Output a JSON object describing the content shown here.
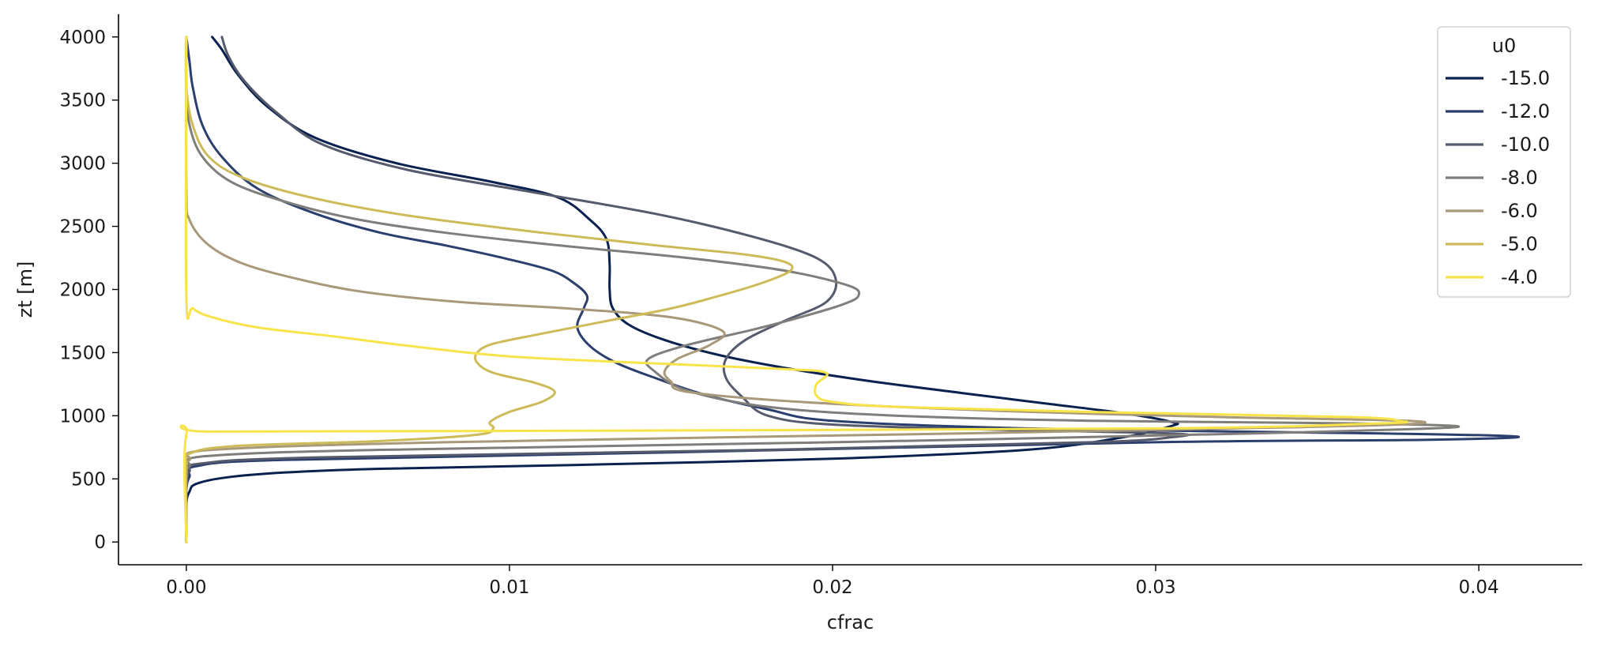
{
  "chart_data": {
    "type": "line",
    "xlabel": "cfrac",
    "ylabel": "zt [m]",
    "xlim": [
      -0.0021,
      0.0432
    ],
    "ylim": [
      -180,
      4180
    ],
    "x_ticks": [
      {
        "value": 0.0,
        "label": "0.00"
      },
      {
        "value": 0.01,
        "label": "0.01"
      },
      {
        "value": 0.02,
        "label": "0.02"
      },
      {
        "value": 0.03,
        "label": "0.03"
      },
      {
        "value": 0.04,
        "label": "0.04"
      }
    ],
    "y_ticks": [
      {
        "value": 0,
        "label": "0"
      },
      {
        "value": 500,
        "label": "500"
      },
      {
        "value": 1000,
        "label": "1000"
      },
      {
        "value": 1500,
        "label": "1500"
      },
      {
        "value": 2000,
        "label": "2000"
      },
      {
        "value": 2500,
        "label": "2500"
      },
      {
        "value": 3000,
        "label": "3000"
      },
      {
        "value": 3500,
        "label": "3500"
      },
      {
        "value": 4000,
        "label": "4000"
      }
    ],
    "grid": false,
    "legend": {
      "title": "u0",
      "placement": "top-right"
    },
    "series": [
      {
        "name": "-15.0",
        "color": "#0a2150",
        "points": [
          [
            0,
            0
          ],
          [
            0,
            300
          ],
          [
            0.0001,
            400
          ],
          [
            0.0003,
            460
          ],
          [
            0.0012,
            510
          ],
          [
            0.003,
            550
          ],
          [
            0.006,
            580
          ],
          [
            0.012,
            610
          ],
          [
            0.02,
            660
          ],
          [
            0.026,
            730
          ],
          [
            0.029,
            830
          ],
          [
            0.0305,
            920
          ],
          [
            0.0305,
            950
          ],
          [
            0.029,
            1020
          ],
          [
            0.0265,
            1100
          ],
          [
            0.024,
            1180
          ],
          [
            0.021,
            1280
          ],
          [
            0.0185,
            1380
          ],
          [
            0.0165,
            1480
          ],
          [
            0.0148,
            1600
          ],
          [
            0.0137,
            1720
          ],
          [
            0.0132,
            1850
          ],
          [
            0.0131,
            2000
          ],
          [
            0.0131,
            2200
          ],
          [
            0.013,
            2400
          ],
          [
            0.0125,
            2550
          ],
          [
            0.0115,
            2730
          ],
          [
            0.0095,
            2850
          ],
          [
            0.0065,
            3000
          ],
          [
            0.004,
            3200
          ],
          [
            0.0025,
            3450
          ],
          [
            0.0016,
            3700
          ],
          [
            0.0011,
            3900
          ],
          [
            0.0008,
            4000
          ]
        ]
      },
      {
        "name": "-12.0",
        "color": "#2b3f6e",
        "points": [
          [
            0,
            0
          ],
          [
            0,
            400
          ],
          [
            0.0001,
            520
          ],
          [
            0.0003,
            600
          ],
          [
            0.003,
            650
          ],
          [
            0.015,
            710
          ],
          [
            0.03,
            790
          ],
          [
            0.0385,
            810
          ],
          [
            0.0412,
            835
          ],
          [
            0.037,
            860
          ],
          [
            0.026,
            900
          ],
          [
            0.02,
            960
          ],
          [
            0.018,
            1050
          ],
          [
            0.016,
            1170
          ],
          [
            0.0145,
            1300
          ],
          [
            0.0133,
            1420
          ],
          [
            0.0125,
            1550
          ],
          [
            0.0121,
            1700
          ],
          [
            0.0123,
            1850
          ],
          [
            0.0124,
            1950
          ],
          [
            0.012,
            2050
          ],
          [
            0.0113,
            2150
          ],
          [
            0.0098,
            2250
          ],
          [
            0.008,
            2350
          ],
          [
            0.006,
            2450
          ],
          [
            0.004,
            2600
          ],
          [
            0.0022,
            2800
          ],
          [
            0.0011,
            3050
          ],
          [
            0.0005,
            3300
          ],
          [
            0.0002,
            3600
          ],
          [
            0.0001,
            3800
          ],
          [
            0,
            4000
          ]
        ]
      },
      {
        "name": "-10.0",
        "color": "#555a6c",
        "points": [
          [
            0,
            0
          ],
          [
            0,
            450
          ],
          [
            0.0001,
            560
          ],
          [
            0.0004,
            620
          ],
          [
            0.004,
            670
          ],
          [
            0.018,
            730
          ],
          [
            0.028,
            790
          ],
          [
            0.0305,
            830
          ],
          [
            0.0305,
            860
          ],
          [
            0.025,
            890
          ],
          [
            0.02,
            930
          ],
          [
            0.018,
            1000
          ],
          [
            0.0172,
            1150
          ],
          [
            0.0167,
            1300
          ],
          [
            0.0167,
            1450
          ],
          [
            0.0173,
            1600
          ],
          [
            0.0185,
            1750
          ],
          [
            0.0198,
            1900
          ],
          [
            0.0201,
            2080
          ],
          [
            0.0195,
            2250
          ],
          [
            0.0175,
            2420
          ],
          [
            0.0145,
            2600
          ],
          [
            0.0105,
            2780
          ],
          [
            0.0068,
            2950
          ],
          [
            0.0042,
            3150
          ],
          [
            0.0028,
            3400
          ],
          [
            0.0018,
            3650
          ],
          [
            0.0013,
            3850
          ],
          [
            0.0011,
            4000
          ]
        ]
      },
      {
        "name": "-8.0",
        "color": "#7f7e7a",
        "points": [
          [
            0,
            0
          ],
          [
            0,
            500
          ],
          [
            0.0001,
            600
          ],
          [
            0.0006,
            680
          ],
          [
            0.006,
            730
          ],
          [
            0.02,
            790
          ],
          [
            0.033,
            860
          ],
          [
            0.0393,
            910
          ],
          [
            0.036,
            940
          ],
          [
            0.028,
            960
          ],
          [
            0.022,
            1000
          ],
          [
            0.018,
            1070
          ],
          [
            0.0155,
            1200
          ],
          [
            0.0145,
            1350
          ],
          [
            0.0143,
            1450
          ],
          [
            0.0155,
            1560
          ],
          [
            0.0175,
            1680
          ],
          [
            0.019,
            1780
          ],
          [
            0.0203,
            1880
          ],
          [
            0.0208,
            1950
          ],
          [
            0.0205,
            2030
          ],
          [
            0.0185,
            2150
          ],
          [
            0.0155,
            2250
          ],
          [
            0.0115,
            2350
          ],
          [
            0.008,
            2450
          ],
          [
            0.0052,
            2560
          ],
          [
            0.003,
            2700
          ],
          [
            0.0014,
            2850
          ],
          [
            0.0005,
            3050
          ],
          [
            0.0001,
            3300
          ],
          [
            0,
            3600
          ],
          [
            0,
            4000
          ]
        ]
      },
      {
        "name": "-6.0",
        "color": "#a8997a",
        "points": [
          [
            0,
            0
          ],
          [
            0,
            550
          ],
          [
            0.0001,
            650
          ],
          [
            0.0008,
            730
          ],
          [
            0.008,
            790
          ],
          [
            0.024,
            860
          ],
          [
            0.0325,
            900
          ],
          [
            0.0375,
            930
          ],
          [
            0.0378,
            960
          ],
          [
            0.032,
            990
          ],
          [
            0.025,
            1040
          ],
          [
            0.019,
            1110
          ],
          [
            0.0155,
            1190
          ],
          [
            0.015,
            1270
          ],
          [
            0.0148,
            1350
          ],
          [
            0.0152,
            1450
          ],
          [
            0.0162,
            1560
          ],
          [
            0.0166,
            1670
          ],
          [
            0.015,
            1780
          ],
          [
            0.0118,
            1850
          ],
          [
            0.0085,
            1900
          ],
          [
            0.0055,
            1980
          ],
          [
            0.0035,
            2080
          ],
          [
            0.0018,
            2200
          ],
          [
            0.0007,
            2350
          ],
          [
            0.0001,
            2550
          ],
          [
            0,
            2800
          ],
          [
            0,
            4000
          ]
        ]
      },
      {
        "name": "-5.0",
        "color": "#cdbb5a",
        "points": [
          [
            0,
            0
          ],
          [
            0,
            600
          ],
          [
            0.0001,
            700
          ],
          [
            0.0015,
            760
          ],
          [
            0.006,
            800
          ],
          [
            0.009,
            850
          ],
          [
            0.0095,
            900
          ],
          [
            0.0094,
            950
          ],
          [
            0.01,
            1030
          ],
          [
            0.011,
            1110
          ],
          [
            0.0114,
            1190
          ],
          [
            0.0108,
            1260
          ],
          [
            0.0095,
            1340
          ],
          [
            0.009,
            1420
          ],
          [
            0.009,
            1500
          ],
          [
            0.0095,
            1570
          ],
          [
            0.011,
            1650
          ],
          [
            0.013,
            1750
          ],
          [
            0.015,
            1850
          ],
          [
            0.0165,
            1950
          ],
          [
            0.0178,
            2050
          ],
          [
            0.0187,
            2150
          ],
          [
            0.0185,
            2220
          ],
          [
            0.0172,
            2280
          ],
          [
            0.0145,
            2350
          ],
          [
            0.011,
            2450
          ],
          [
            0.007,
            2580
          ],
          [
            0.004,
            2720
          ],
          [
            0.0018,
            2880
          ],
          [
            0.0007,
            3050
          ],
          [
            0.0002,
            3300
          ],
          [
            0,
            3600
          ],
          [
            0,
            4000
          ]
        ]
      },
      {
        "name": "-4.0",
        "color": "#f7e34a",
        "points": [
          [
            0,
            0
          ],
          [
            0,
            850
          ],
          [
            0.0008,
            875
          ],
          [
            0.01,
            880
          ],
          [
            0.03,
            900
          ],
          [
            0.037,
            940
          ],
          [
            0.0375,
            960
          ],
          [
            0.036,
            990
          ],
          [
            0.028,
            1030
          ],
          [
            0.022,
            1070
          ],
          [
            0.02,
            1110
          ],
          [
            0.0195,
            1160
          ],
          [
            0.0195,
            1250
          ],
          [
            0.0198,
            1340
          ],
          [
            0.0185,
            1370
          ],
          [
            0.014,
            1420
          ],
          [
            0.01,
            1470
          ],
          [
            0.007,
            1550
          ],
          [
            0.0045,
            1630
          ],
          [
            0.0022,
            1700
          ],
          [
            0.0008,
            1780
          ],
          [
            0.0002,
            1850
          ],
          [
            0,
            1950
          ],
          [
            0,
            4000
          ]
        ]
      }
    ]
  }
}
